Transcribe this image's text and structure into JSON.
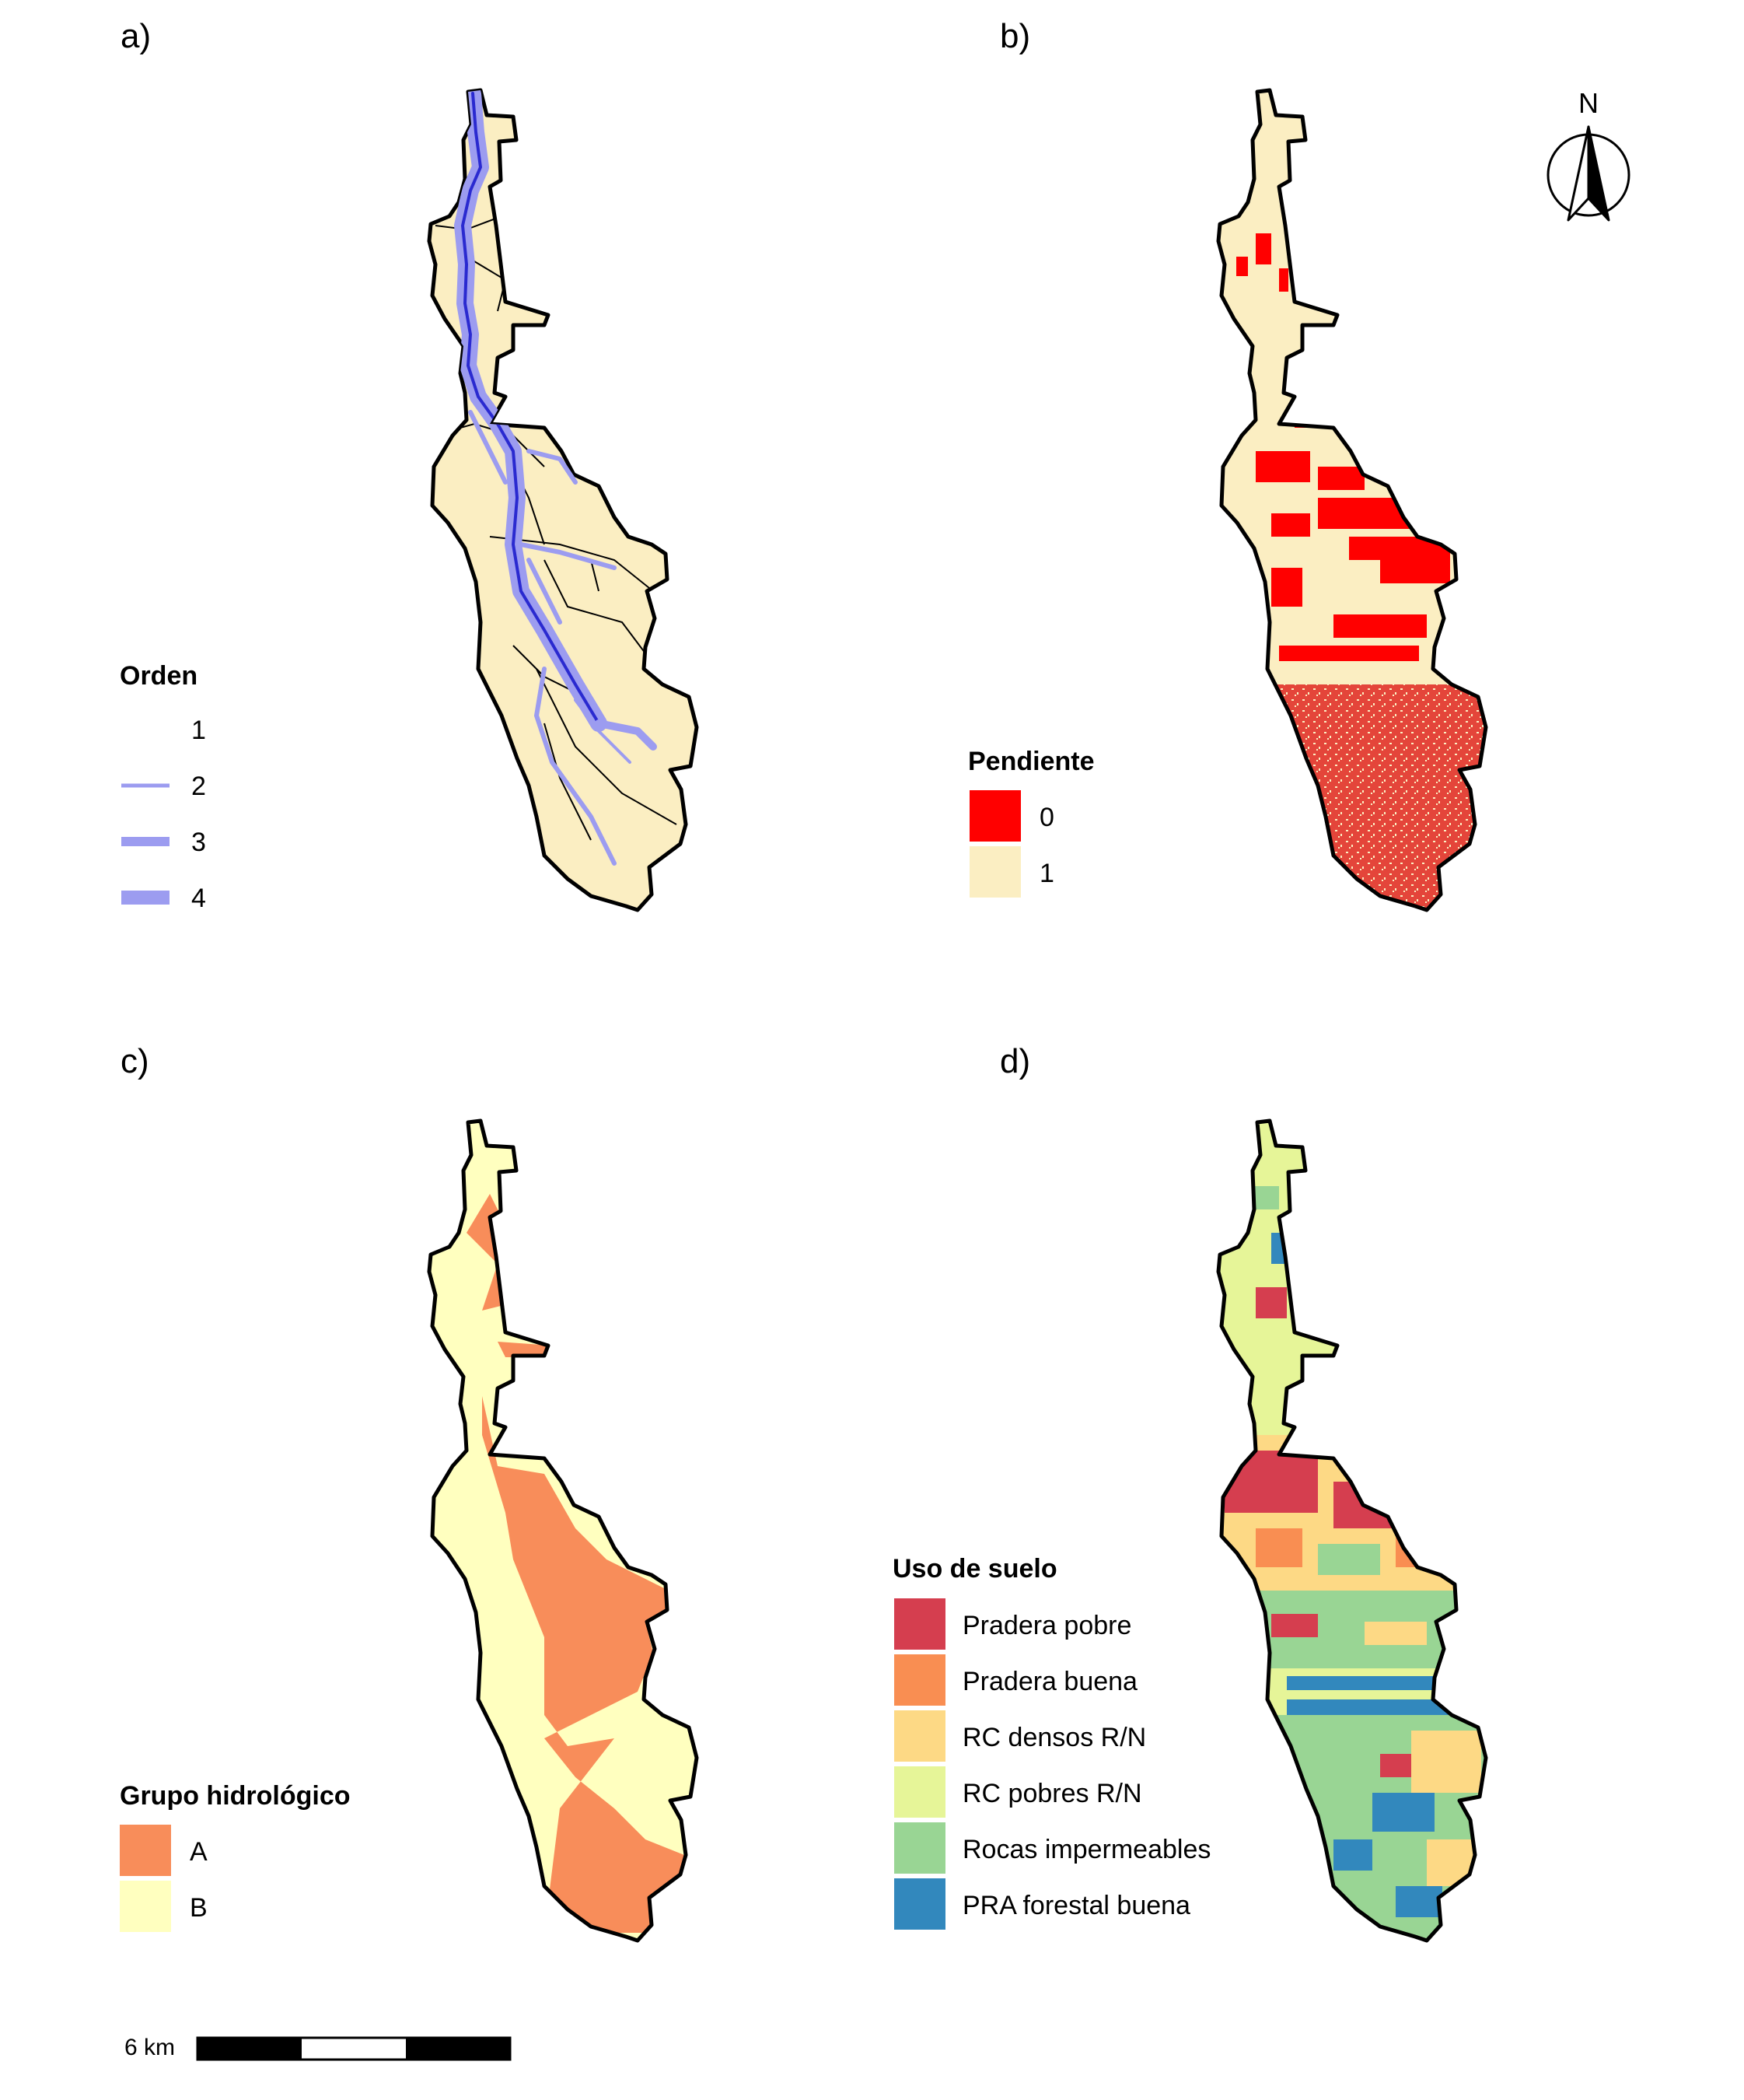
{
  "panels": {
    "a": {
      "label": "a)"
    },
    "b": {
      "label": "b)"
    },
    "c": {
      "label": "c)"
    },
    "d": {
      "label": "d)"
    }
  },
  "legend_a": {
    "title": "Orden",
    "items": [
      "1",
      "2",
      "3",
      "4"
    ]
  },
  "legend_b": {
    "title": "Pendiente",
    "items": [
      {
        "label": "0",
        "color": "#ff0000"
      },
      {
        "label": "1",
        "color": "#fbeec2"
      }
    ]
  },
  "legend_c": {
    "title": "Grupo hidrológico",
    "items": [
      {
        "label": "A",
        "color": "#f88d5a"
      },
      {
        "label": "B",
        "color": "#ffffbf"
      }
    ]
  },
  "legend_d": {
    "title": "Uso de suelo",
    "items": [
      {
        "label": "Pradera pobre",
        "color": "#d53e4f"
      },
      {
        "label": "Pradera buena",
        "color": "#f98e52"
      },
      {
        "label": "RC densos R/N",
        "color": "#fdd985"
      },
      {
        "label": "RC pobres R/N",
        "color": "#e6f598"
      },
      {
        "label": "Rocas impermeables",
        "color": "#99d594"
      },
      {
        "label": "PRA forestal buena",
        "color": "#3288bd"
      }
    ]
  },
  "north_arrow": {
    "label": "N",
    "icon": "north-arrow-icon"
  },
  "scale_bar": {
    "label": "6 km"
  },
  "colors": {
    "stream": "#9c9cf0",
    "stream_dark": "#2a2ad0",
    "basin_fill": "#fbeec2",
    "outline": "#000000"
  }
}
